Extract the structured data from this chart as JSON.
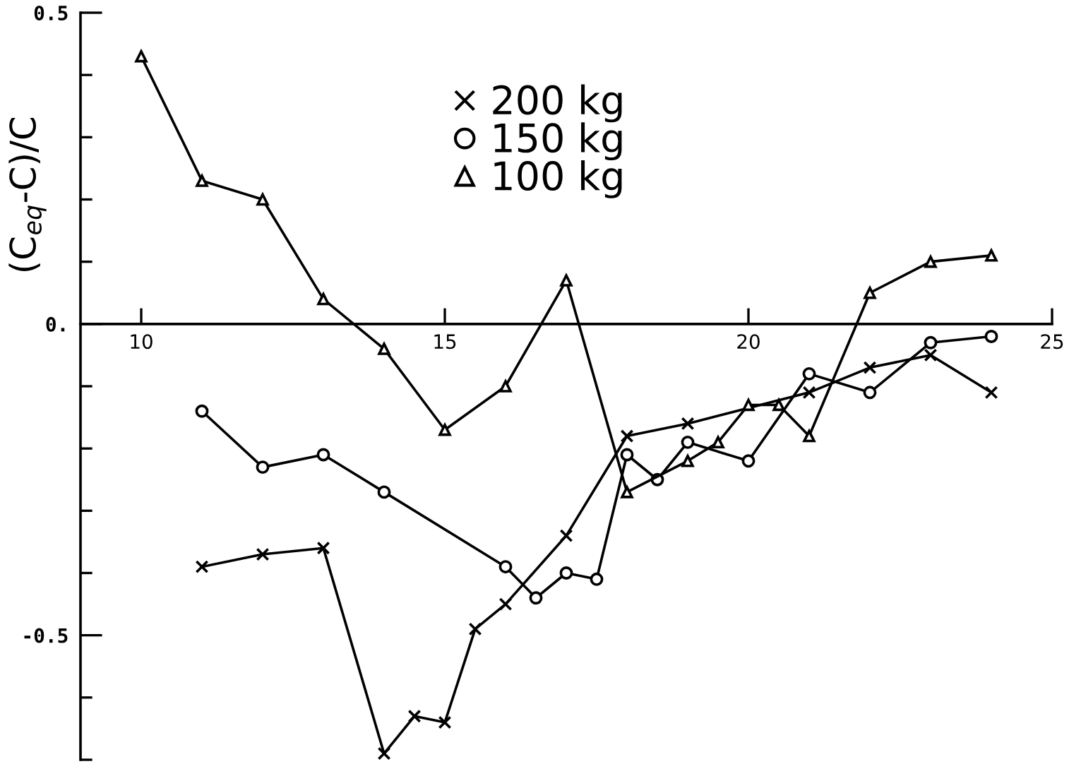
{
  "chart_data": {
    "type": "line",
    "ylabel": "(C$_{eq}$-C)/C",
    "xlim": [
      9,
      25
    ],
    "xticks": [
      10,
      15,
      20,
      25
    ],
    "ylim": [
      -0.7,
      0.5
    ],
    "yticks": [
      0.5,
      {
        "value": 0.4,
        "label": null
      },
      {
        "value": 0.3,
        "label": null
      },
      {
        "value": 0.2,
        "label": null
      },
      {
        "value": 0.1,
        "label": null
      },
      {
        "value": 0,
        "label": "0."
      },
      {
        "value": -0.1,
        "label": null
      },
      {
        "value": -0.2,
        "label": null
      },
      {
        "value": -0.3,
        "label": null
      },
      {
        "value": -0.4,
        "label": null
      },
      -0.5,
      {
        "value": -0.6,
        "label": null
      },
      {
        "value": -0.7,
        "label": null
      }
    ],
    "legend": "top",
    "line_style": "solid",
    "series": [
      {
        "name": "200 kg",
        "color": "#000000",
        "marker": "cross",
        "x": [
          11,
          12,
          13,
          14,
          14.5,
          15,
          15.5,
          16,
          17,
          18,
          19,
          21,
          22,
          23,
          24
        ],
        "values": [
          -0.39,
          -0.37,
          -0.36,
          -0.69,
          -0.63,
          -0.64,
          -0.49,
          -0.45,
          -0.34,
          -0.18,
          -0.16,
          -0.11,
          -0.07,
          -0.05,
          -0.11
        ]
      },
      {
        "name": "150 kg",
        "color": "#000000",
        "marker": "circle",
        "x": [
          11,
          12,
          13,
          14,
          16,
          16.5,
          17,
          17.5,
          18,
          18.5,
          19,
          20,
          21,
          22,
          23,
          24
        ],
        "values": [
          -0.14,
          -0.23,
          -0.21,
          -0.27,
          -0.39,
          -0.44,
          -0.4,
          -0.41,
          -0.21,
          -0.25,
          -0.19,
          -0.22,
          -0.08,
          -0.11,
          -0.03,
          -0.02
        ]
      },
      {
        "name": "100 kg",
        "color": "#000000",
        "marker": "triangle",
        "x": [
          10,
          11,
          12,
          13,
          14,
          15,
          16,
          17,
          18,
          19,
          19.5,
          20,
          20.5,
          21,
          22,
          23,
          24
        ],
        "values": [
          0.43,
          0.23,
          0.2,
          0.04,
          -0.04,
          -0.17,
          -0.1,
          0.07,
          -0.27,
          -0.22,
          -0.19,
          -0.13,
          -0.13,
          -0.18,
          0.05,
          0.1,
          0.11
        ]
      }
    ]
  }
}
